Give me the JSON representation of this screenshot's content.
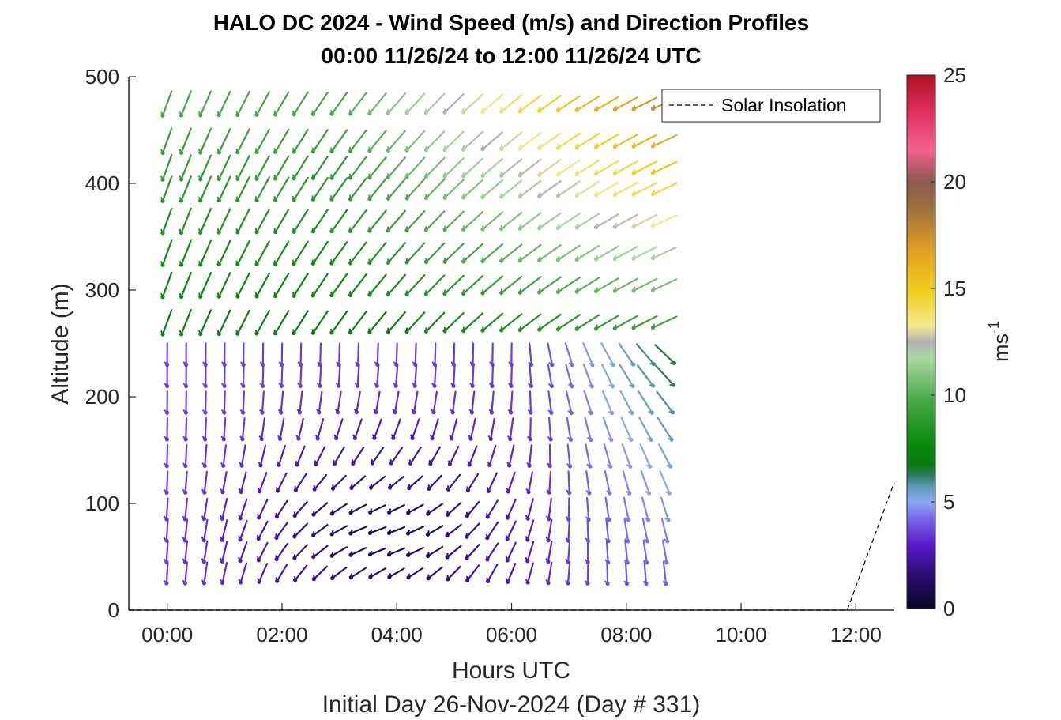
{
  "chart_data": {
    "type": "wind-barb-profile",
    "title": "HALO DC 2024 - Wind Speed (m/s) and Direction Profiles",
    "subtitle": "00:00 11/26/24 to 12:00 11/26/24  UTC",
    "xlabel": "Hours UTC",
    "xlabel2": "Initial Day 26-Nov-2024 (Day # 331)",
    "ylabel": "Altitude (m)",
    "x_ticks": [
      "00:00",
      "02:00",
      "04:00",
      "06:00",
      "08:00",
      "10:00",
      "12:00"
    ],
    "x_tick_hours": [
      0,
      2,
      4,
      6,
      8,
      10,
      12
    ],
    "xlim_hours": [
      -0.67,
      12.67
    ],
    "y_ticks": [
      "0",
      "100",
      "200",
      "300",
      "400",
      "500"
    ],
    "y_tick_values": [
      0,
      100,
      200,
      300,
      400,
      500
    ],
    "ylim": [
      0,
      500
    ],
    "colorbar": {
      "label": "ms",
      "label_exponent": "-1",
      "ticks": [
        "0",
        "5",
        "10",
        "15",
        "20",
        "25"
      ],
      "tick_values": [
        0,
        5,
        10,
        15,
        20,
        25
      ],
      "range": [
        0,
        25
      ]
    },
    "legend": {
      "entry": "Solar Insolation",
      "placement": "top-right"
    },
    "times_hours": [
      0.0,
      0.33,
      0.67,
      1.0,
      1.33,
      1.67,
      2.0,
      2.33,
      2.67,
      3.0,
      3.33,
      3.67,
      4.0,
      4.33,
      4.67,
      5.0,
      5.33,
      5.67,
      6.0,
      6.33,
      6.67,
      7.0,
      7.33,
      7.67,
      8.0,
      8.33,
      8.67
    ],
    "altitudes_m": [
      35,
      55,
      75,
      95,
      120,
      145,
      170,
      195,
      220,
      240,
      270,
      305,
      335,
      365,
      395,
      415,
      440,
      475
    ],
    "solar_insolation": {
      "x_hours": [
        -0.67,
        11.85,
        12.67
      ],
      "y_relative": [
        0,
        0,
        120
      ]
    },
    "colors": {
      "line": "#000000",
      "axis": "#262626"
    }
  }
}
